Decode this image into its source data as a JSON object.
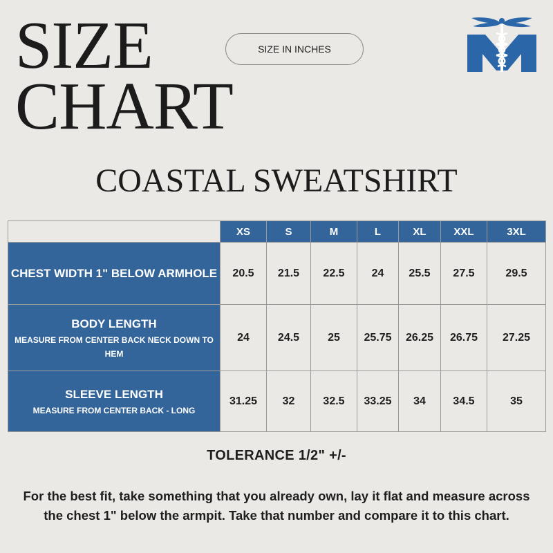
{
  "header": {
    "title_line1": "SIZE",
    "title_line2": "CHART",
    "units_label": "SIZE IN INCHES",
    "product_name": "COASTAL SWEATSHIRT"
  },
  "logo": {
    "icon": "caduceus-m-logo-icon",
    "color": "#2a66a8"
  },
  "table": {
    "sizes": [
      "XS",
      "S",
      "M",
      "L",
      "XL",
      "XXL",
      "3XL"
    ],
    "rows": [
      {
        "label": "CHEST WIDTH 1\" BELOW ARMHOLE",
        "sublabel": "",
        "values": [
          "20.5",
          "21.5",
          "22.5",
          "24",
          "25.5",
          "27.5",
          "29.5"
        ]
      },
      {
        "label": "BODY LENGTH",
        "sublabel": "MEASURE FROM CENTER BACK NECK DOWN TO HEM",
        "values": [
          "24",
          "24.5",
          "25",
          "25.75",
          "26.25",
          "26.75",
          "27.25"
        ]
      },
      {
        "label": "SLEEVE LENGTH",
        "sublabel": "MEASURE FROM CENTER BACK - LONG",
        "values": [
          "31.25",
          "32",
          "32.5",
          "33.25",
          "34",
          "34.5",
          "35"
        ]
      }
    ]
  },
  "footer": {
    "tolerance": "TOLERANCE 1/2\" +/-",
    "note": "For the best fit, take something that you already own, lay it flat and measure across the chest 1\" below the armpit.  Take that number and compare it to this chart."
  },
  "colors": {
    "header_blue": "#33649a",
    "background": "#ebe9e5",
    "text": "#1e1e1e"
  }
}
